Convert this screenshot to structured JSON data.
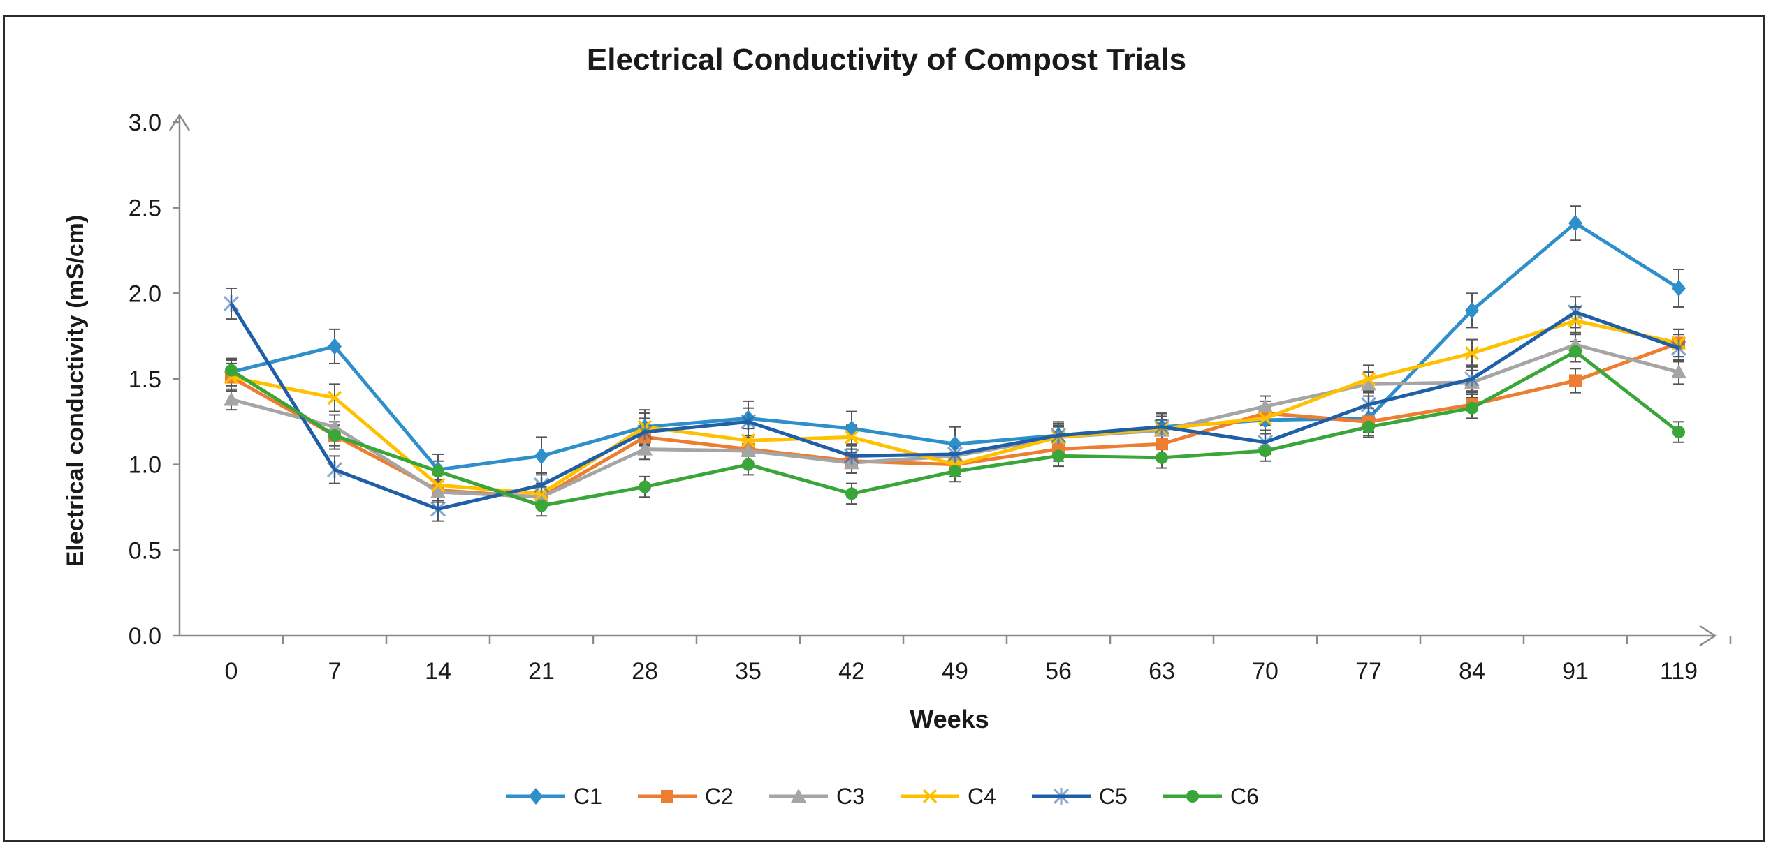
{
  "chart_data": {
    "type": "line",
    "title": "Electrical Conductivity of Compost Trials",
    "xlabel": "Weeks",
    "ylabel": "Electrical conductivity (mS/cm)",
    "categories": [
      "0",
      "7",
      "14",
      "21",
      "28",
      "35",
      "42",
      "49",
      "56",
      "63",
      "70",
      "77",
      "84",
      "91",
      "119"
    ],
    "ylim": [
      0,
      3.0
    ],
    "yticks": [
      "0.0",
      "0.5",
      "1.0",
      "1.5",
      "2.0",
      "2.5",
      "3.0"
    ],
    "grid": false,
    "legend_position": "bottom",
    "error_bars": true,
    "series": [
      {
        "name": "C1",
        "color": "#2E8FCB",
        "marker": "diamond",
        "values": [
          1.54,
          1.69,
          0.97,
          1.05,
          1.22,
          1.27,
          1.21,
          1.12,
          1.17,
          1.22,
          1.26,
          1.27,
          1.9,
          2.41,
          2.03
        ],
        "errors": [
          0.08,
          0.1,
          0.09,
          0.11,
          0.1,
          0.1,
          0.1,
          0.1,
          0.08,
          0.08,
          0.08,
          0.08,
          0.1,
          0.1,
          0.11
        ]
      },
      {
        "name": "C2",
        "color": "#ED7D31",
        "marker": "square",
        "values": [
          1.51,
          1.17,
          0.85,
          0.81,
          1.16,
          1.09,
          1.02,
          1.0,
          1.09,
          1.12,
          1.3,
          1.25,
          1.35,
          1.49,
          1.71
        ],
        "errors": [
          0.08,
          0.08,
          0.06,
          0.06,
          0.08,
          0.07,
          0.07,
          0.07,
          0.07,
          0.07,
          0.07,
          0.08,
          0.08,
          0.07,
          0.08
        ]
      },
      {
        "name": "C3",
        "color": "#A5A5A5",
        "marker": "triangle",
        "values": [
          1.38,
          1.22,
          0.84,
          0.81,
          1.09,
          1.08,
          1.01,
          1.05,
          1.16,
          1.2,
          1.34,
          1.47,
          1.48,
          1.7,
          1.54
        ],
        "errors": [
          0.06,
          0.07,
          0.06,
          0.06,
          0.06,
          0.06,
          0.06,
          0.06,
          0.06,
          0.06,
          0.06,
          0.07,
          0.07,
          0.07,
          0.07
        ]
      },
      {
        "name": "C4",
        "color": "#FFC000",
        "marker": "x",
        "values": [
          1.51,
          1.39,
          0.88,
          0.83,
          1.22,
          1.14,
          1.16,
          1.0,
          1.16,
          1.21,
          1.27,
          1.5,
          1.65,
          1.84,
          1.71
        ],
        "errors": [
          0.08,
          0.08,
          0.06,
          0.06,
          0.08,
          0.07,
          0.07,
          0.07,
          0.07,
          0.07,
          0.07,
          0.08,
          0.08,
          0.08,
          0.08
        ]
      },
      {
        "name": "C5",
        "color": "#1F5FA8",
        "marker": "star",
        "values": [
          1.94,
          0.97,
          0.74,
          0.88,
          1.19,
          1.25,
          1.05,
          1.06,
          1.17,
          1.22,
          1.13,
          1.35,
          1.5,
          1.89,
          1.68
        ],
        "errors": [
          0.09,
          0.08,
          0.07,
          0.07,
          0.08,
          0.08,
          0.07,
          0.07,
          0.07,
          0.07,
          0.07,
          0.08,
          0.08,
          0.09,
          0.08
        ]
      },
      {
        "name": "C6",
        "color": "#3AA63A",
        "marker": "circle",
        "values": [
          1.55,
          1.17,
          0.96,
          0.76,
          0.87,
          1.0,
          0.83,
          0.96,
          1.05,
          1.04,
          1.08,
          1.22,
          1.33,
          1.66,
          1.19
        ],
        "errors": [
          0.06,
          0.06,
          0.06,
          0.06,
          0.06,
          0.06,
          0.06,
          0.06,
          0.06,
          0.06,
          0.06,
          0.06,
          0.06,
          0.06,
          0.06
        ]
      }
    ]
  }
}
